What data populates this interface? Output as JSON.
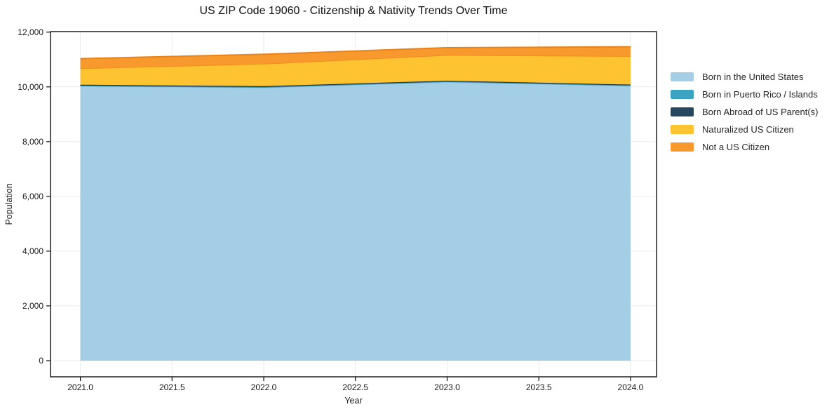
{
  "chart_data": {
    "type": "area",
    "stacked": true,
    "title": "US ZIP Code 19060 - Citizenship & Nativity Trends Over Time",
    "xlabel": "Year",
    "ylabel": "Population",
    "x": [
      2021,
      2022,
      2023,
      2024
    ],
    "series": [
      {
        "name": "Born in the United States",
        "color": "#a3cee6",
        "edge": "#8bbfda",
        "values": [
          10030,
          9975,
          10180,
          10040
        ]
      },
      {
        "name": "Born in Puerto Rico / Islands",
        "color": "#3ba3c2",
        "edge": "#2f8fae",
        "values": [
          20,
          20,
          20,
          20
        ]
      },
      {
        "name": "Born Abroad of US Parent(s)",
        "color": "#26475e",
        "edge": "#1d3849",
        "values": [
          30,
          30,
          25,
          25
        ]
      },
      {
        "name": "Naturalized US Citizen",
        "color": "#fdc330",
        "edge": "#f08c1e",
        "values": [
          600,
          820,
          940,
          1040
        ]
      },
      {
        "name": "Not a US Citizen",
        "color": "#f8992d",
        "edge": "#e8821a",
        "values": [
          350,
          345,
          265,
          340
        ]
      }
    ],
    "x_ticks": [
      2021.0,
      2021.5,
      2022.0,
      2022.5,
      2023.0,
      2023.5,
      2024.0
    ],
    "x_tick_labels": [
      "2021.0",
      "2021.5",
      "2022.0",
      "2022.5",
      "2023.0",
      "2023.5",
      "2024.0"
    ],
    "y_ticks": [
      0,
      2000,
      4000,
      6000,
      8000,
      10000,
      12000
    ],
    "y_tick_labels": [
      "0",
      "2,000",
      "4,000",
      "6,000",
      "8,000",
      "10,000",
      "12,000"
    ],
    "xlim": [
      2020.837,
      2024.142
    ],
    "ylim": [
      -590,
      12020
    ],
    "grid": true,
    "grid_color": "#ebebeb",
    "axis_color": "#111111",
    "tick_text_color": "#1a1a1a",
    "legend_position": "right"
  }
}
